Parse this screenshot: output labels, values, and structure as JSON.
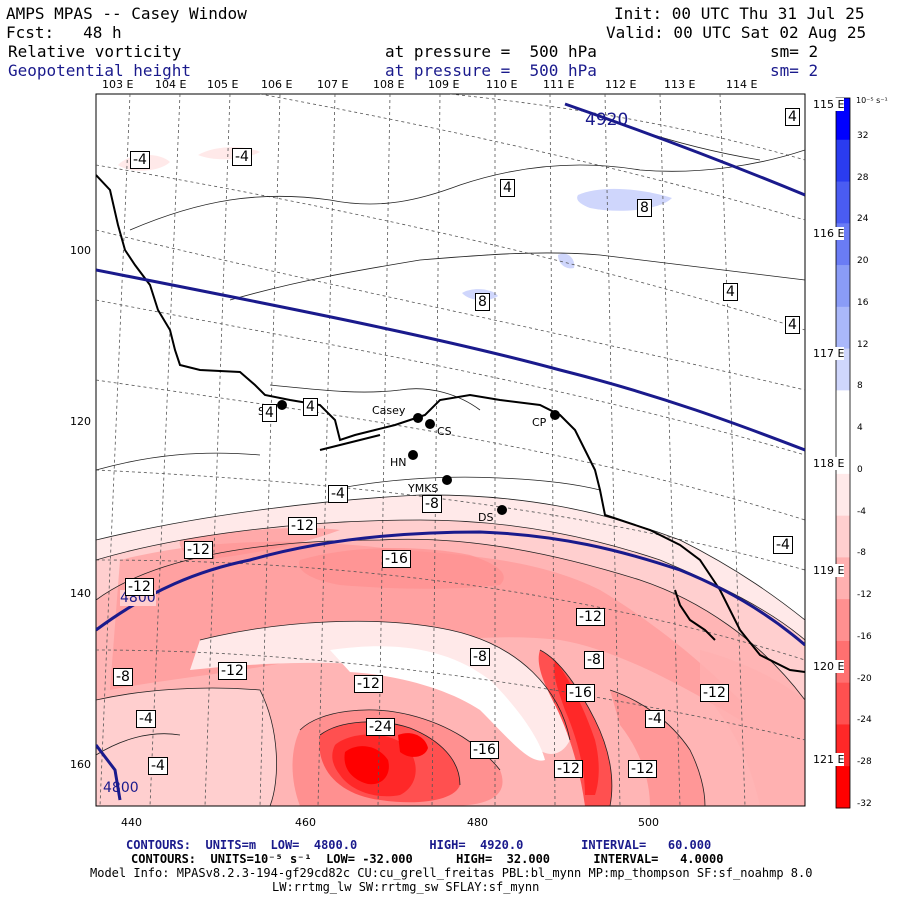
{
  "header": {
    "title": "AMPS MPAS -- Casey Window",
    "init": "Init: 00 UTC Thu 31 Jul 25",
    "fcst": "Fcst:   48 h",
    "valid": "Valid: 00 UTC Sat 02 Aug 25",
    "field1_name": "Relative vorticity",
    "field1_level": "at pressure =  500 hPa",
    "field1_sm": "sm= 2",
    "field2_name": "Geopotential height",
    "field2_level": "at pressure =  500 hPa",
    "field2_sm": "sm= 2"
  },
  "longitude_labels_top": [
    "103 E",
    "104 E",
    "105 E",
    "106 E",
    "107 E",
    "108 E",
    "109 E",
    "110 E",
    "111 E",
    "112 E",
    "113 E",
    "114 E"
  ],
  "longitude_labels_right": [
    "115 E",
    "116 E",
    "117 E",
    "118 E",
    "119 E",
    "120 E",
    "121 E"
  ],
  "grid_y_labels": [
    "100",
    "120",
    "140",
    "160"
  ],
  "grid_x_labels": [
    "440",
    "460",
    "480",
    "500"
  ],
  "colorbar": {
    "unit": "10⁻⁵ s⁻¹",
    "ticks": [
      "32",
      "28",
      "24",
      "20",
      "16",
      "12",
      "8",
      "4",
      "0",
      "-4",
      "-8",
      "-12",
      "-16",
      "-20",
      "-24",
      "-28",
      "-32"
    ],
    "colors": [
      "#0000ff",
      "#2a3cf0",
      "#4a5cf2",
      "#6a7cf5",
      "#8a9cf7",
      "#aab8fa",
      "#cfd6fc",
      "#ffffff",
      "#ffffff",
      "#ffe9e9",
      "#ffcfcf",
      "#ffb0b0",
      "#ff9090",
      "#ff7070",
      "#ff5050",
      "#ff2828",
      "#ff0000"
    ]
  },
  "stations": [
    {
      "name": "SH"
    },
    {
      "name": "Casey"
    },
    {
      "name": "CS"
    },
    {
      "name": "HN"
    },
    {
      "name": "YMKS"
    },
    {
      "name": "DS"
    },
    {
      "name": "CP"
    }
  ],
  "height_labels": [
    "4920",
    "4800",
    "4800"
  ],
  "vorticity_labels": [
    "-4",
    "-4",
    "4",
    "8",
    "8",
    "4",
    "4",
    "4",
    "4",
    "4",
    "-4",
    "-8",
    "-12",
    "-12",
    "-16",
    "-4",
    "-12",
    "-12",
    "-12",
    "-8",
    "-8",
    "-12",
    "-12",
    "-16",
    "-4",
    "-8",
    "-4",
    "-24",
    "-16",
    "-12",
    "-12",
    "-4"
  ],
  "footer": {
    "line1": "CONTOURS:  UNITS=m  LOW=  4800.0          HIGH=  4920.0        INTERVAL=   60.000",
    "line2": "CONTOURS:  UNITS=10⁻⁵ s⁻¹  LOW= -32.000      HIGH=  32.000      INTERVAL=   4.0000",
    "line3": "Model Info: MPASv8.2.3-194-gf29cd82c CU:cu_grell_freitas PBL:bl_mynn MP:mp_thompson SF:sf_noahmp 8.0",
    "line4": "LW:rrtmg_lw SW:rrtmg_sw SFLAY:sf_mynn"
  }
}
